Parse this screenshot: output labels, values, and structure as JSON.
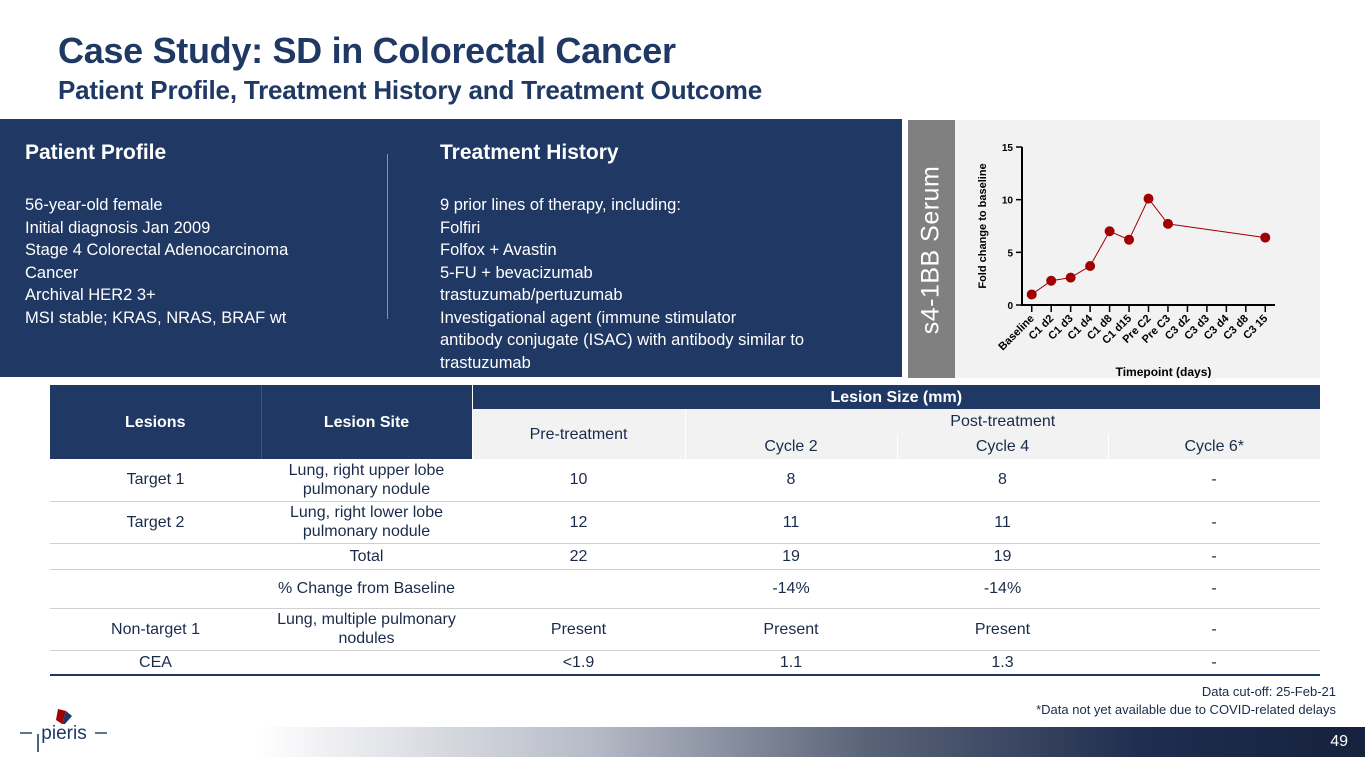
{
  "title": "Case Study: SD in Colorectal Cancer",
  "subtitle": "Patient Profile, Treatment History and Treatment Outcome",
  "profile": {
    "heading": "Patient Profile",
    "lines": [
      "56-year-old female",
      "Initial diagnosis Jan 2009",
      "Stage 4 Colorectal Adenocarcinoma",
      "Cancer",
      "Archival HER2 3+",
      "MSI stable; KRAS, NRAS, BRAF wt"
    ]
  },
  "history": {
    "heading": "Treatment History",
    "lines": [
      "9 prior lines of therapy, including:",
      "Folfiri",
      "Folfox + Avastin",
      "5-FU + bevacizumab",
      "trastuzumab/pertuzumab",
      "Investigational agent (immune stimulator",
      "antibody conjugate (ISAC) with antibody similar to",
      "trastuzumab"
    ]
  },
  "serum_label": "s4-1BB Serum",
  "chart_data": {
    "type": "scatter",
    "xlabel": "Timepoint (days)",
    "ylabel": "Fold change to baseline",
    "ylim": [
      0,
      15
    ],
    "yticks": [
      "0",
      "5",
      "10",
      "15"
    ],
    "categories": [
      "Baseline",
      "C1 d2",
      "C1 d3",
      "C1 d4",
      "C1 d8",
      "C1 d15",
      "Pre C2",
      "Pre C3",
      "C3 d2",
      "C3 d3",
      "C3 d4",
      "C3 d8",
      "C3 15"
    ],
    "points": [
      {
        "x": "Baseline",
        "y": 1.0
      },
      {
        "x": "C1 d2",
        "y": 2.3
      },
      {
        "x": "C1 d3",
        "y": 2.6
      },
      {
        "x": "C1 d4",
        "y": 3.7
      },
      {
        "x": "C1 d8",
        "y": 7.0
      },
      {
        "x": "C1 d15",
        "y": 6.2
      },
      {
        "x": "Pre C2",
        "y": 10.1
      },
      {
        "x": "Pre C3",
        "y": 7.7
      },
      {
        "x": "C3 15",
        "y": 6.4
      }
    ],
    "grid": false,
    "marker_color": "#a00000"
  },
  "table": {
    "h_lesions": "Lesions",
    "h_site": "Lesion Site",
    "h_size": "Lesion Size (mm)",
    "h_pre": "Pre-treatment",
    "h_post": "Post-treatment",
    "h_c2": "Cycle 2",
    "h_c4": "Cycle 4",
    "h_c6": "Cycle 6*",
    "rows": [
      {
        "lesion": "Target 1",
        "site1": "Lung, right upper lobe",
        "site2": "pulmonary nodule",
        "pre": "10",
        "c2": "8",
        "c4": "8",
        "c6": "-"
      },
      {
        "lesion": "Target 2",
        "site1": "Lung, right lower lobe",
        "site2": "pulmonary nodule",
        "pre": "12",
        "c2": "11",
        "c4": "11",
        "c6": "-"
      },
      {
        "lesion": "",
        "site1": "Total",
        "site2": "",
        "pre": "22",
        "c2": "19",
        "c4": "19",
        "c6": "-"
      },
      {
        "lesion": "",
        "site1": "% Change from Baseline",
        "site2": "",
        "pre": "",
        "c2": "-14%",
        "c4": "-14%",
        "c6": "-"
      },
      {
        "lesion": "Non-target 1",
        "site1": "Lung, multiple pulmonary",
        "site2": "nodules",
        "pre": "Present",
        "c2": "Present",
        "c4": "Present",
        "c6": "-"
      },
      {
        "lesion": "CEA",
        "site1": "",
        "site2": "",
        "pre": "<1.9",
        "c2": "1.1",
        "c4": "1.3",
        "c6": "-"
      }
    ]
  },
  "footnotes": {
    "cutoff": "Data cut-off: 25-Feb-21",
    "note": "*Data not yet available due to COVID-related delays"
  },
  "logo_text": "pieris",
  "page_number": "49",
  "colors": {
    "navy": "#203864",
    "marker": "#a00000",
    "gray": "#808080"
  }
}
